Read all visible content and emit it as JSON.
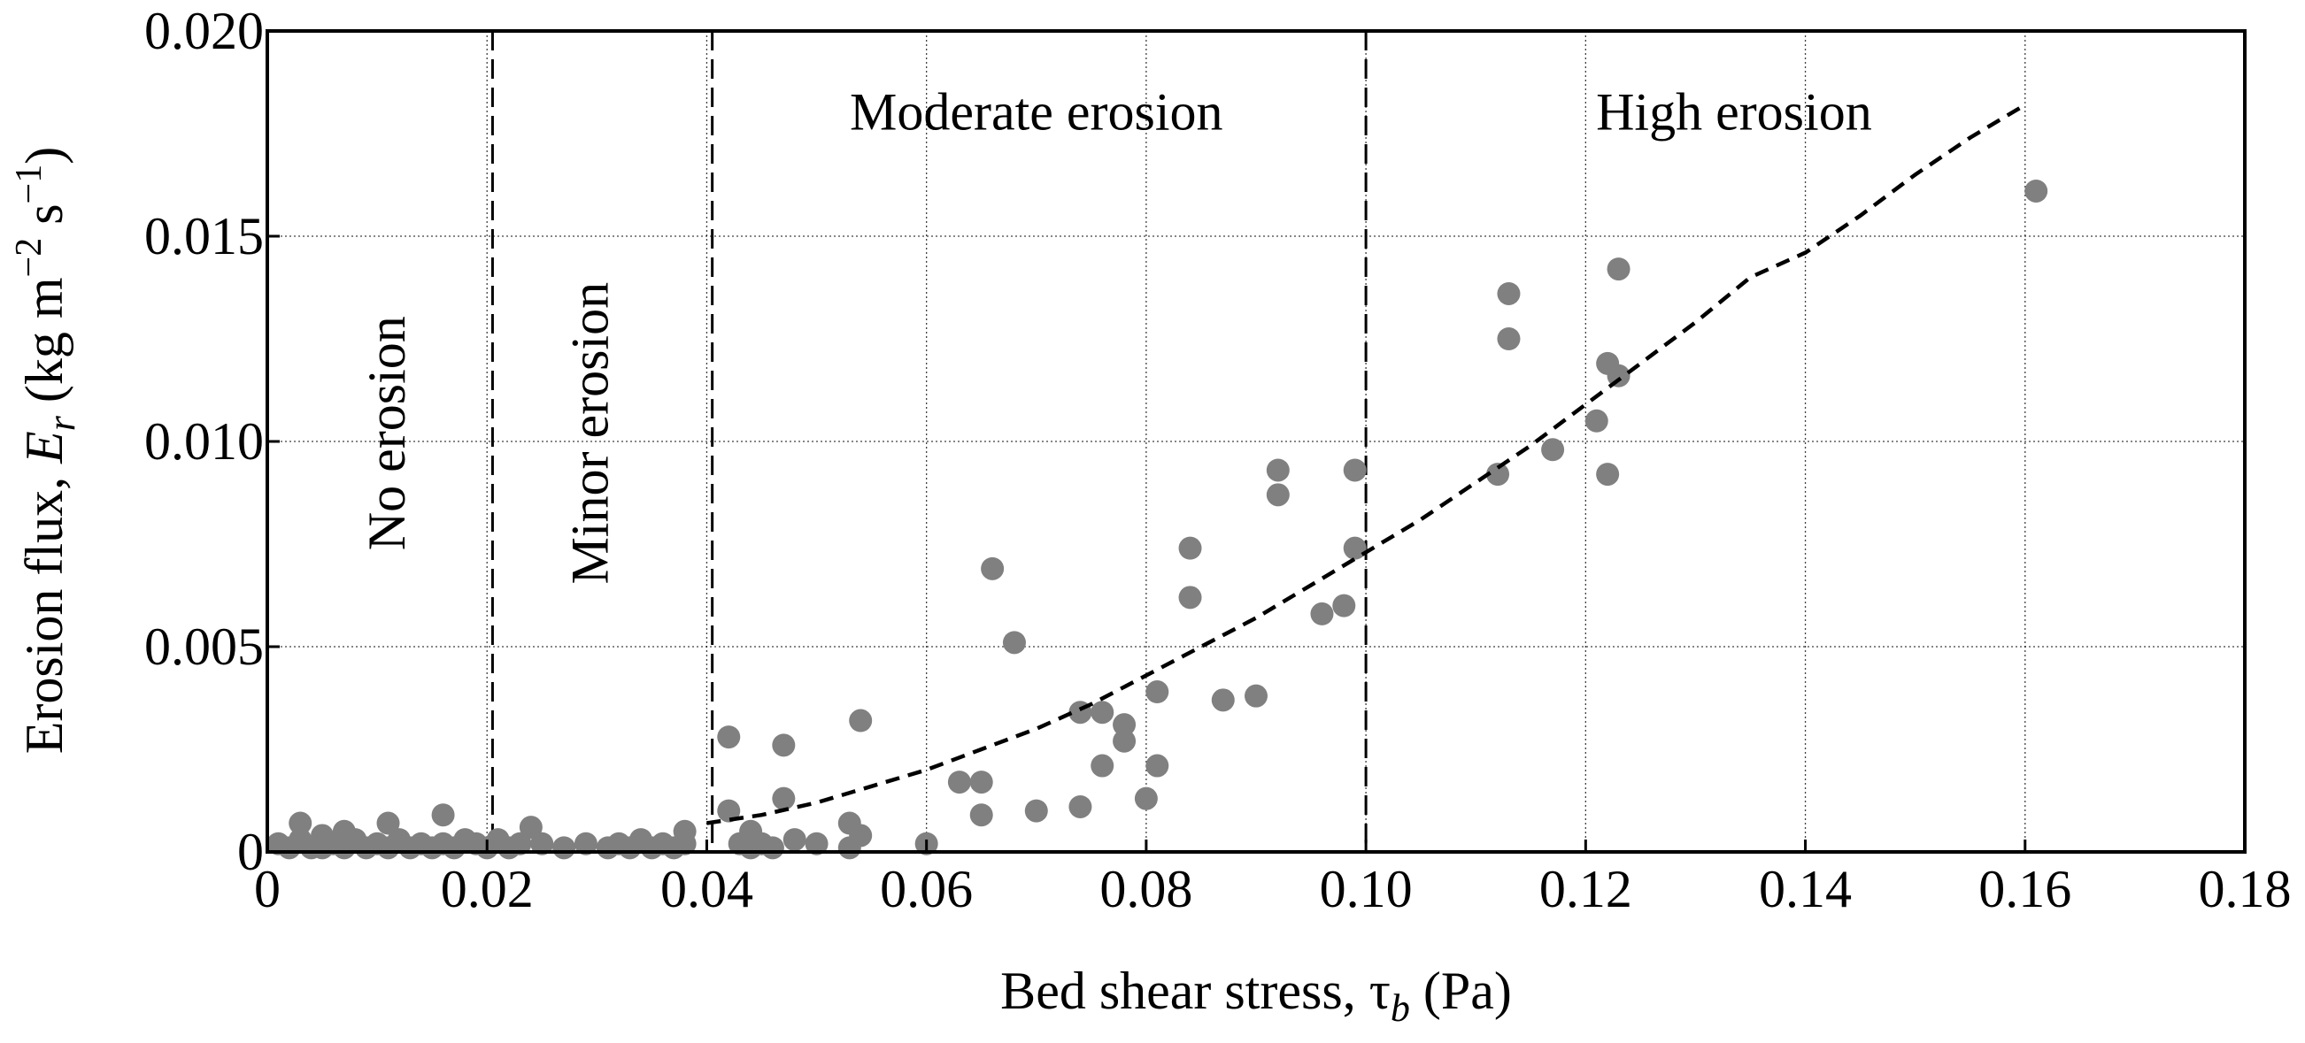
{
  "chart_data": {
    "type": "scatter",
    "title": "",
    "xlabel": "Bed shear stress, τb (Pa)",
    "xlabel_parts": {
      "main": "Bed shear stress, τ",
      "sub": "b",
      "tail": " (Pa)"
    },
    "ylabel": "Erosion flux, Er (kg m−2 s−1)",
    "ylabel_parts": {
      "main": "Erosion flux, ",
      "var": "E",
      "var_sub": "r",
      "unit_open": " (kg m",
      "exp1": "−2",
      "mid": " s",
      "exp2": "−1",
      "close": ")"
    },
    "xlim": [
      0,
      0.18
    ],
    "ylim": [
      0,
      0.02
    ],
    "xticks": [
      0,
      0.02,
      0.04,
      0.06,
      0.08,
      0.1,
      0.12,
      0.14,
      0.16,
      0.18
    ],
    "xtick_labels": [
      "0",
      "0.02",
      "0.04",
      "0.06",
      "0.08",
      "0.10",
      "0.12",
      "0.14",
      "0.16",
      "0.18"
    ],
    "yticks": [
      0,
      0.005,
      0.01,
      0.015,
      0.02
    ],
    "ytick_labels": [
      "0",
      "0.005",
      "0.010",
      "0.015",
      "0.020"
    ],
    "grid": true,
    "point_color": "#808080",
    "fit_color": "#000000",
    "zone_boundaries": [
      0.0205,
      0.0405,
      0.1
    ],
    "zones": [
      {
        "label": "No erosion",
        "x": 0.0125,
        "y": 0.0102,
        "rotated": true
      },
      {
        "label": "Minor erosion",
        "x": 0.031,
        "y": 0.0102,
        "rotated": true
      },
      {
        "label": "Moderate erosion",
        "x": 0.07,
        "y": 0.0176,
        "rotated": false
      },
      {
        "label": "High erosion",
        "x": 0.1335,
        "y": 0.0176,
        "rotated": false
      }
    ],
    "fit_curve": {
      "x": [
        0.04,
        0.045,
        0.05,
        0.055,
        0.06,
        0.065,
        0.07,
        0.075,
        0.08,
        0.085,
        0.09,
        0.095,
        0.1,
        0.105,
        0.11,
        0.115,
        0.12,
        0.125,
        0.13,
        0.135,
        0.14,
        0.145,
        0.15,
        0.155,
        0.16
      ],
      "y": [
        0.0007,
        0.0009,
        0.0012,
        0.0016,
        0.002,
        0.0025,
        0.003,
        0.0036,
        0.0043,
        0.005,
        0.0057,
        0.0065,
        0.0073,
        0.0081,
        0.009,
        0.0099,
        0.0109,
        0.0119,
        0.0129,
        0.014,
        0.0146,
        0.0155,
        0.0165,
        0.0174,
        0.0182
      ]
    },
    "points": {
      "x": [
        0.001,
        0.002,
        0.003,
        0.003,
        0.004,
        0.005,
        0.005,
        0.006,
        0.007,
        0.007,
        0.008,
        0.009,
        0.01,
        0.011,
        0.011,
        0.012,
        0.013,
        0.014,
        0.015,
        0.016,
        0.016,
        0.017,
        0.018,
        0.019,
        0.02,
        0.021,
        0.022,
        0.023,
        0.024,
        0.025,
        0.027,
        0.029,
        0.031,
        0.032,
        0.033,
        0.034,
        0.035,
        0.036,
        0.037,
        0.038,
        0.038,
        0.042,
        0.042,
        0.043,
        0.044,
        0.044,
        0.045,
        0.046,
        0.047,
        0.047,
        0.048,
        0.05,
        0.053,
        0.053,
        0.054,
        0.054,
        0.06,
        0.063,
        0.065,
        0.065,
        0.066,
        0.068,
        0.07,
        0.074,
        0.074,
        0.076,
        0.076,
        0.078,
        0.078,
        0.08,
        0.081,
        0.081,
        0.084,
        0.084,
        0.087,
        0.09,
        0.092,
        0.092,
        0.096,
        0.098,
        0.099,
        0.099,
        0.112,
        0.113,
        0.113,
        0.117,
        0.121,
        0.122,
        0.122,
        0.123,
        0.123,
        0.161
      ],
      "y": [
        0.0002,
        0.0001,
        0.0007,
        0.0003,
        0.0001,
        0.0004,
        0.0001,
        0.0002,
        0.0005,
        0.0001,
        0.0003,
        0.0001,
        0.0002,
        0.0007,
        0.0001,
        0.0003,
        0.0001,
        0.0002,
        0.0001,
        0.0009,
        0.0002,
        0.0001,
        0.0003,
        0.0002,
        0.0001,
        0.0003,
        0.0001,
        0.0002,
        0.0006,
        0.0002,
        0.0001,
        0.0002,
        0.0001,
        0.0002,
        0.0001,
        0.0003,
        0.0001,
        0.0002,
        0.0001,
        0.0005,
        0.0002,
        0.001,
        0.0028,
        0.0002,
        0.0005,
        0.0001,
        0.0002,
        0.0001,
        0.0026,
        0.0013,
        0.0003,
        0.0002,
        0.0001,
        0.0007,
        0.0032,
        0.0004,
        0.0002,
        0.0017,
        0.0009,
        0.0017,
        0.0069,
        0.0051,
        0.001,
        0.0011,
        0.0034,
        0.0034,
        0.0021,
        0.0031,
        0.0027,
        0.0013,
        0.0039,
        0.0021,
        0.0074,
        0.0062,
        0.0037,
        0.0038,
        0.0087,
        0.0093,
        0.0058,
        0.006,
        0.0093,
        0.0074,
        0.0092,
        0.0136,
        0.0125,
        0.0098,
        0.0105,
        0.0119,
        0.0092,
        0.0142,
        0.0116,
        0.0161
      ]
    }
  }
}
